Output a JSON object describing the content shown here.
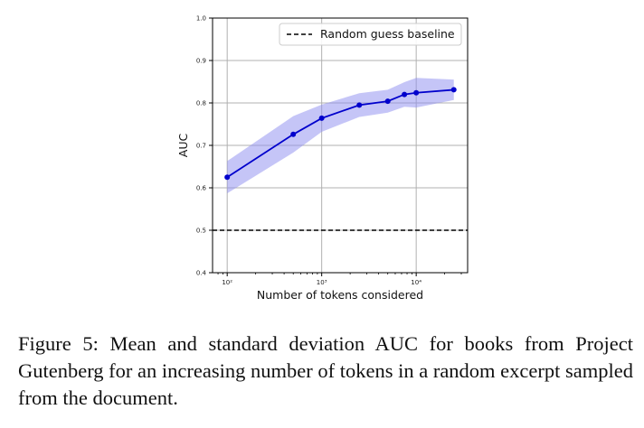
{
  "chart_data": {
    "type": "line",
    "title": "",
    "xlabel": "Number of tokens considered",
    "ylabel": "AUC",
    "xscale": "log",
    "xlim": [
      70,
      35000
    ],
    "ylim": [
      0.4,
      1.0
    ],
    "yticks": [
      0.4,
      0.5,
      0.6,
      0.7,
      0.8,
      0.9,
      1.0
    ],
    "ytick_labels": [
      "0.4",
      "0.5",
      "0.6",
      "0.7",
      "0.8",
      "0.9",
      "1.0"
    ],
    "xticks": [
      100,
      1000,
      10000
    ],
    "xtick_labels": [
      "10²",
      "10³",
      "10⁴"
    ],
    "grid": true,
    "legend_position": "top-right",
    "series": [
      {
        "values_x": [
          100,
          500,
          1000,
          2500,
          5000,
          7500,
          10000,
          25000
        ],
        "values_y": [
          0.625,
          0.726,
          0.764,
          0.795,
          0.804,
          0.82,
          0.824,
          0.831
        ],
        "std_lower": [
          0.587,
          0.683,
          0.732,
          0.767,
          0.777,
          0.791,
          0.789,
          0.807
        ],
        "std_upper": [
          0.663,
          0.769,
          0.796,
          0.823,
          0.831,
          0.849,
          0.859,
          0.855
        ],
        "color": "#0000cc",
        "band_color": "#8c8cf0"
      }
    ],
    "baseline": {
      "name": "Random guess baseline",
      "y": 0.5,
      "style": "dashed",
      "color": "#000000"
    }
  },
  "caption": "Figure 5: Mean and standard deviation AUC for books from Project Gutenberg for an increasing number of tokens in a random excerpt sampled from the document."
}
